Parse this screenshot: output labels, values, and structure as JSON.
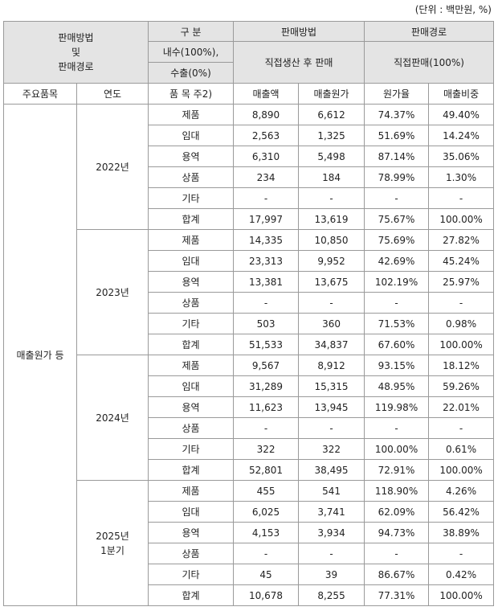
{
  "unit_note": "(단위 : 백만원, %)",
  "header": {
    "corner_line1": "판매방법",
    "corner_line2": "및",
    "corner_line3": "판매경로",
    "gubun": "구 분",
    "method_label": "판매방법",
    "channel_label": "판매경로",
    "domestic": "내수(100%),",
    "export": "수출(0%)",
    "method_value": "직접생산 후 판매",
    "channel_value": "직접판매(100%)"
  },
  "columns": {
    "main_item": "주요품목",
    "year": "연도",
    "item": "품 목 주2)",
    "sales": "매출액",
    "cost": "매출원가",
    "cost_ratio": "원가율",
    "sales_share": "매출비중"
  },
  "main_item_value": "매출원가 등",
  "groups": [
    {
      "year_line1": "2022년",
      "year_line2": "",
      "rows": [
        {
          "item": "제품",
          "sales": "8,890",
          "cost": "6,612",
          "ratio": "74.37%",
          "share": "49.40%"
        },
        {
          "item": "임대",
          "sales": "2,563",
          "cost": "1,325",
          "ratio": "51.69%",
          "share": "14.24%"
        },
        {
          "item": "용역",
          "sales": "6,310",
          "cost": "5,498",
          "ratio": "87.14%",
          "share": "35.06%"
        },
        {
          "item": "상품",
          "sales": "234",
          "cost": "184",
          "ratio": "78.99%",
          "share": "1.30%"
        },
        {
          "item": "기타",
          "sales": "-",
          "cost": "-",
          "ratio": "-",
          "share": "-"
        },
        {
          "item": "합계",
          "sales": "17,997",
          "cost": "13,619",
          "ratio": "75.67%",
          "share": "100.00%"
        }
      ]
    },
    {
      "year_line1": "2023년",
      "year_line2": "",
      "rows": [
        {
          "item": "제품",
          "sales": "14,335",
          "cost": "10,850",
          "ratio": "75.69%",
          "share": "27.82%"
        },
        {
          "item": "임대",
          "sales": "23,313",
          "cost": "9,952",
          "ratio": "42.69%",
          "share": "45.24%"
        },
        {
          "item": "용역",
          "sales": "13,381",
          "cost": "13,675",
          "ratio": "102.19%",
          "share": "25.97%"
        },
        {
          "item": "상품",
          "sales": "-",
          "cost": "-",
          "ratio": "-",
          "share": "-"
        },
        {
          "item": "기타",
          "sales": "503",
          "cost": "360",
          "ratio": "71.53%",
          "share": "0.98%"
        },
        {
          "item": "합계",
          "sales": "51,533",
          "cost": "34,837",
          "ratio": "67.60%",
          "share": "100.00%"
        }
      ]
    },
    {
      "year_line1": "2024년",
      "year_line2": "",
      "rows": [
        {
          "item": "제품",
          "sales": "9,567",
          "cost": "8,912",
          "ratio": "93.15%",
          "share": "18.12%"
        },
        {
          "item": "임대",
          "sales": "31,289",
          "cost": "15,315",
          "ratio": "48.95%",
          "share": "59.26%"
        },
        {
          "item": "용역",
          "sales": "11,623",
          "cost": "13,945",
          "ratio": "119.98%",
          "share": "22.01%"
        },
        {
          "item": "상품",
          "sales": "-",
          "cost": "-",
          "ratio": "-",
          "share": "-"
        },
        {
          "item": "기타",
          "sales": "322",
          "cost": "322",
          "ratio": "100.00%",
          "share": "0.61%"
        },
        {
          "item": "합계",
          "sales": "52,801",
          "cost": "38,495",
          "ratio": "72.91%",
          "share": "100.00%"
        }
      ]
    },
    {
      "year_line1": "2025년",
      "year_line2": "1분기",
      "rows": [
        {
          "item": "제품",
          "sales": "455",
          "cost": "541",
          "ratio": "118.90%",
          "share": "4.26%"
        },
        {
          "item": "임대",
          "sales": "6,025",
          "cost": "3,741",
          "ratio": "62.09%",
          "share": "56.42%"
        },
        {
          "item": "용역",
          "sales": "4,153",
          "cost": "3,934",
          "ratio": "94.73%",
          "share": "38.89%"
        },
        {
          "item": "상품",
          "sales": "-",
          "cost": "-",
          "ratio": "-",
          "share": "-"
        },
        {
          "item": "기타",
          "sales": "45",
          "cost": "39",
          "ratio": "86.67%",
          "share": "0.42%"
        },
        {
          "item": "합계",
          "sales": "10,678",
          "cost": "8,255",
          "ratio": "77.31%",
          "share": "100.00%"
        }
      ]
    }
  ]
}
